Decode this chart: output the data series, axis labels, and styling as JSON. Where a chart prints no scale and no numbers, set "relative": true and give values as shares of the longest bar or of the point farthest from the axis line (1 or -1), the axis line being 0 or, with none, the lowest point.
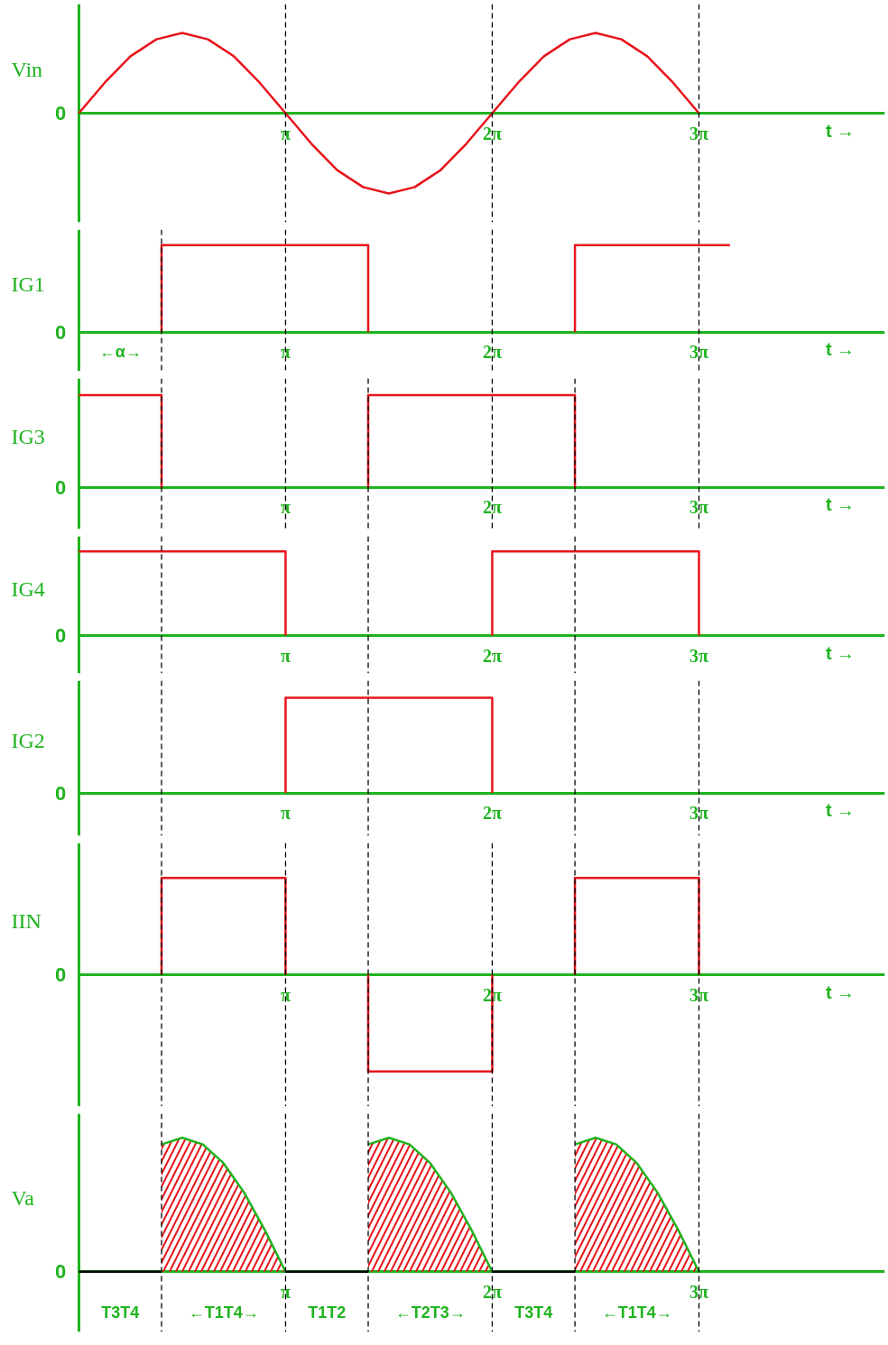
{
  "chart_data": [
    {
      "type": "line",
      "relative": true,
      "ylabel": "Vin",
      "xlabel": "t →",
      "annotations": [
        "0"
      ],
      "xlim": [
        0,
        12.25
      ],
      "xticks": [
        {
          "value": 3.1416,
          "label": "π"
        },
        {
          "value": 6.2832,
          "label": "2π"
        },
        {
          "value": 9.4248,
          "label": "3π"
        }
      ],
      "grid": false,
      "line_style": "solid",
      "x": [
        0,
        0.393,
        0.785,
        1.178,
        1.571,
        1.963,
        2.356,
        2.749,
        3.142,
        3.534,
        3.927,
        4.32,
        4.712,
        5.105,
        5.498,
        5.89,
        6.283,
        6.676,
        7.069,
        7.461,
        7.854,
        8.247,
        8.639,
        9.032,
        9.425
      ],
      "series": [
        {
          "color": "#e8141c",
          "values": [
            0,
            0.38,
            0.71,
            0.92,
            1,
            0.92,
            0.71,
            0.38,
            0,
            -0.38,
            -0.71,
            -0.92,
            -1,
            -0.92,
            -0.71,
            -0.38,
            0,
            0.38,
            0.71,
            0.92,
            1,
            0.92,
            0.71,
            0.38,
            0
          ]
        }
      ],
      "ref_lines": [
        {
          "axis": "x",
          "value": 3.142,
          "color": "#000000",
          "line_style": "dashed"
        },
        {
          "axis": "x",
          "value": 6.283,
          "color": "#000000",
          "line_style": "dashed"
        },
        {
          "axis": "x",
          "value": 9.425,
          "color": "#000000",
          "line_style": "dashed"
        }
      ]
    },
    {
      "type": "line",
      "relative": true,
      "ylabel": "IG1",
      "xlabel": "t →",
      "xlim": [
        0,
        12.25
      ],
      "xticks": [
        {
          "value": 3.1416,
          "label": "π"
        },
        {
          "value": 6.2832,
          "label": "2π"
        },
        {
          "value": 9.4248,
          "label": "3π"
        }
      ],
      "grid": false,
      "line_style": "solid",
      "x": [
        1.257,
        1.257,
        4.398,
        4.398,
        6.283,
        7.54,
        7.54,
        9.896
      ],
      "series": [
        {
          "color": "#e8141c",
          "values": [
            0,
            1,
            1,
            0,
            null,
            0,
            1,
            1
          ]
        }
      ],
      "annotations": [
        "0",
        "←α→"
      ],
      "ref_lines": [
        {
          "axis": "x",
          "value": 1.257,
          "color": "#000000",
          "line_style": "dashed"
        },
        {
          "axis": "x",
          "value": 3.142,
          "color": "#000000",
          "line_style": "dashed"
        },
        {
          "axis": "x",
          "value": 6.283,
          "color": "#000000",
          "line_style": "dashed"
        },
        {
          "axis": "x",
          "value": 9.425,
          "color": "#000000",
          "line_style": "dashed"
        }
      ]
    },
    {
      "type": "line",
      "relative": true,
      "ylabel": "IG3",
      "xlabel": "t →",
      "annotations": [
        "0"
      ],
      "xlim": [
        0,
        12.25
      ],
      "xticks": [
        {
          "value": 3.1416,
          "label": "π"
        },
        {
          "value": 6.2832,
          "label": "2π"
        },
        {
          "value": 9.4248,
          "label": "3π"
        }
      ],
      "grid": false,
      "line_style": "solid",
      "x": [
        0,
        1.257,
        1.257,
        3.142,
        4.398,
        4.398,
        7.54,
        7.54
      ],
      "series": [
        {
          "color": "#e8141c",
          "values": [
            1,
            1,
            0,
            null,
            0,
            1,
            1,
            0
          ]
        }
      ],
      "ref_lines": [
        {
          "axis": "x",
          "value": 1.257,
          "color": "#000000",
          "line_style": "dashed"
        },
        {
          "axis": "x",
          "value": 3.142,
          "color": "#000000",
          "line_style": "dashed"
        },
        {
          "axis": "x",
          "value": 4.398,
          "color": "#000000",
          "line_style": "dashed"
        },
        {
          "axis": "x",
          "value": 6.283,
          "color": "#000000",
          "line_style": "dashed"
        },
        {
          "axis": "x",
          "value": 7.54,
          "color": "#000000",
          "line_style": "dashed"
        },
        {
          "axis": "x",
          "value": 9.425,
          "color": "#000000",
          "line_style": "dashed"
        }
      ]
    },
    {
      "type": "line",
      "relative": true,
      "ylabel": "IG4",
      "xlabel": "t →",
      "annotations": [
        "0"
      ],
      "xlim": [
        0,
        12.25
      ],
      "xticks": [
        {
          "value": 3.1416,
          "label": "π"
        },
        {
          "value": 6.2832,
          "label": "2π"
        },
        {
          "value": 9.4248,
          "label": "3π"
        }
      ],
      "grid": false,
      "line_style": "solid",
      "x": [
        0,
        3.142,
        3.142,
        4.712,
        6.283,
        6.283,
        9.425,
        9.425
      ],
      "series": [
        {
          "color": "#e8141c",
          "values": [
            1,
            1,
            0,
            null,
            0,
            1,
            1,
            0
          ]
        }
      ],
      "ref_lines": [
        {
          "axis": "x",
          "value": 1.257,
          "color": "#000000",
          "line_style": "dashed"
        },
        {
          "axis": "x",
          "value": 4.398,
          "color": "#000000",
          "line_style": "dashed"
        },
        {
          "axis": "x",
          "value": 7.54,
          "color": "#000000",
          "line_style": "dashed"
        }
      ]
    },
    {
      "type": "line",
      "relative": true,
      "ylabel": "IG2",
      "xlabel": "t →",
      "annotations": [
        "0"
      ],
      "xlim": [
        0,
        12.25
      ],
      "xticks": [
        {
          "value": 3.1416,
          "label": "π"
        },
        {
          "value": 6.2832,
          "label": "2π"
        },
        {
          "value": 9.4248,
          "label": "3π"
        }
      ],
      "grid": false,
      "line_style": "solid",
      "x": [
        3.142,
        3.142,
        6.283,
        6.283
      ],
      "series": [
        {
          "color": "#e8141c",
          "values": [
            0,
            1,
            1,
            0
          ]
        }
      ],
      "ref_lines": [
        {
          "axis": "x",
          "value": 1.257,
          "color": "#000000",
          "line_style": "dashed"
        },
        {
          "axis": "x",
          "value": 4.398,
          "color": "#000000",
          "line_style": "dashed"
        },
        {
          "axis": "x",
          "value": 7.54,
          "color": "#000000",
          "line_style": "dashed"
        },
        {
          "axis": "x",
          "value": 9.425,
          "color": "#000000",
          "line_style": "dashed"
        }
      ]
    },
    {
      "type": "line",
      "relative": true,
      "ylabel": "IIN",
      "xlabel": "t →",
      "annotations": [
        "0"
      ],
      "xlim": [
        0,
        12.25
      ],
      "xticks": [
        {
          "value": 3.1416,
          "label": "π"
        },
        {
          "value": 6.2832,
          "label": "2π"
        },
        {
          "value": 9.4248,
          "label": "3π"
        }
      ],
      "grid": false,
      "line_style": "solid",
      "x": [
        1.257,
        1.257,
        3.142,
        3.142,
        3.77,
        4.398,
        4.398,
        6.283,
        6.283,
        6.912,
        7.54,
        7.54,
        9.425,
        9.425
      ],
      "series": [
        {
          "color": "#e8141c",
          "values": [
            0,
            1,
            1,
            0,
            null,
            0,
            -1,
            -1,
            0,
            null,
            0,
            1,
            1,
            0
          ]
        }
      ],
      "ref_lines": [
        {
          "axis": "x",
          "value": 1.257,
          "color": "#000000",
          "line_style": "dashed"
        },
        {
          "axis": "x",
          "value": 3.142,
          "color": "#000000",
          "line_style": "dashed"
        },
        {
          "axis": "x",
          "value": 4.398,
          "color": "#000000",
          "line_style": "dashed"
        },
        {
          "axis": "x",
          "value": 6.283,
          "color": "#000000",
          "line_style": "dashed"
        },
        {
          "axis": "x",
          "value": 7.54,
          "color": "#000000",
          "line_style": "dashed"
        },
        {
          "axis": "x",
          "value": 9.425,
          "color": "#000000",
          "line_style": "dashed"
        }
      ]
    },
    {
      "type": "area",
      "relative": true,
      "ylabel": "Va",
      "xlim": [
        0,
        12.25
      ],
      "xticks": [
        {
          "value": 3.1416,
          "label": "π"
        },
        {
          "value": 6.2832,
          "label": "2π"
        },
        {
          "value": 9.4248,
          "label": "3π"
        }
      ],
      "grid": false,
      "line_style": "solid",
      "series": [
        {
          "color": "#e8141c",
          "x": [
            1.257,
            1.571,
            1.885,
            2.199,
            2.513,
            2.827,
            3.142
          ],
          "values": [
            0.95,
            1,
            0.95,
            0.81,
            0.59,
            0.31,
            0
          ]
        },
        {
          "color": "#e8141c",
          "x": [
            4.398,
            4.712,
            5.027,
            5.341,
            5.655,
            5.969,
            6.283
          ],
          "values": [
            0.95,
            1,
            0.95,
            0.81,
            0.59,
            0.31,
            0
          ]
        },
        {
          "color": "#e8141c",
          "x": [
            7.54,
            7.854,
            8.168,
            8.482,
            8.796,
            9.111,
            9.425
          ],
          "values": [
            0.95,
            1,
            0.95,
            0.81,
            0.59,
            0.31,
            0
          ]
        },
        {
          "type": "line",
          "color": "#000000",
          "x": [
            0,
            1.257,
            2.199,
            3.142,
            4.398,
            5.341,
            6.283,
            7.54
          ],
          "values": [
            0,
            0,
            null,
            0,
            0,
            null,
            0,
            0
          ]
        }
      ],
      "annotations": [
        "0",
        "T3T4",
        "←T1T4→",
        "T1T2",
        "←T2T3→",
        "T3T4",
        "←T1T4→"
      ],
      "ref_lines": [
        {
          "axis": "x",
          "value": 1.257,
          "color": "#000000",
          "line_style": "dashed"
        },
        {
          "axis": "x",
          "value": 3.142,
          "color": "#000000",
          "line_style": "dashed"
        },
        {
          "axis": "x",
          "value": 4.398,
          "color": "#000000",
          "line_style": "dashed"
        },
        {
          "axis": "x",
          "value": 6.283,
          "color": "#000000",
          "line_style": "dashed"
        },
        {
          "axis": "x",
          "value": 7.54,
          "color": "#000000",
          "line_style": "dashed"
        },
        {
          "axis": "x",
          "value": 9.425,
          "color": "#000000",
          "line_style": "dashed"
        }
      ]
    }
  ]
}
